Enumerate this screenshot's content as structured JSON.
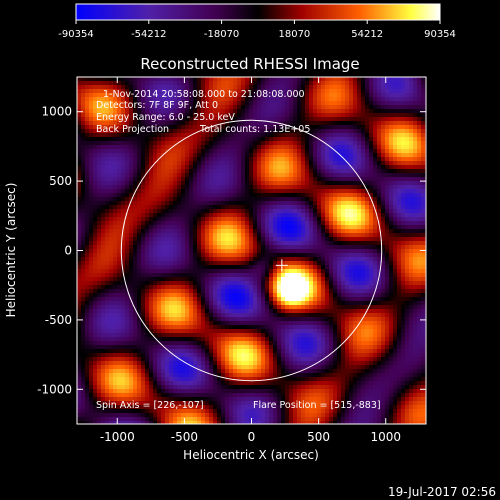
{
  "colorbar": {
    "ticks": [
      "-90354",
      "-54212",
      "-18070",
      "18070",
      "54212",
      "90354"
    ]
  },
  "chart_data": {
    "type": "heatmap",
    "title": "Reconstructed RHESSI Image",
    "xlabel": "Heliocentric X (arcsec)",
    "ylabel": "Heliocentric Y (arcsec)",
    "xlim": [
      -1300,
      1300
    ],
    "ylim": [
      -1250,
      1250
    ],
    "xticks": [
      -1000,
      -500,
      0,
      500,
      1000
    ],
    "yticks": [
      -1000,
      -500,
      0,
      500,
      1000
    ],
    "value_range": [
      -90354,
      90354
    ],
    "colormap": "blue-purple-red-yellow-white",
    "annotations": [
      "1-Nov-2014 20:58:08.000 to 21:08:08.000",
      "Detectors: 7F 8F 9F, Att 0",
      "Energy Range: 6.0 - 25.0 keV",
      "Back Projection",
      "Total counts: 1.13E+05",
      "Spin Axis = [226,-107]",
      "Flare Position = [515,-883]"
    ],
    "solar_limb": {
      "center": [
        0,
        0
      ],
      "radius_arcsec": 970
    },
    "marker": {
      "symbol": "+",
      "x": 226,
      "y": -107
    }
  },
  "timestamp": "19-Jul-2017 02:56"
}
